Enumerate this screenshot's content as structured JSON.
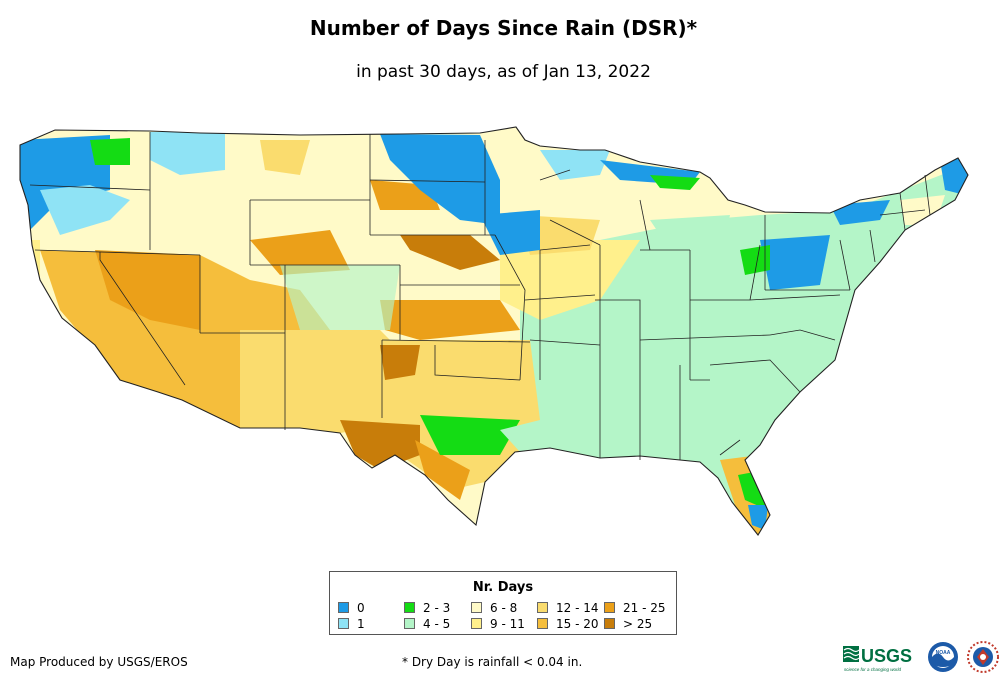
{
  "title": "Number of Days Since Rain (DSR)*",
  "subtitle": "in past 30 days, as of Jan 13, 2022",
  "legend": {
    "title": "Nr. Days",
    "items": [
      {
        "label": "0",
        "color": "#1e9be6"
      },
      {
        "label": "1",
        "color": "#8fe3f5"
      },
      {
        "label": "2 - 3",
        "color": "#14dc14"
      },
      {
        "label": "4 - 5",
        "color": "#b4f5c8"
      },
      {
        "label": "6 - 8",
        "color": "#fffac8"
      },
      {
        "label": "9 - 11",
        "color": "#fff08c"
      },
      {
        "label": "12 - 14",
        "color": "#fadc6e"
      },
      {
        "label": "15 - 20",
        "color": "#f5be3c"
      },
      {
        "label": "21 - 25",
        "color": "#eba019"
      },
      {
        "label": "> 25",
        "color": "#c87d0a"
      }
    ]
  },
  "footer": {
    "credit": "Map Produced by USGS/EROS",
    "note": "* Dry Day is rainfall < 0.04 in."
  },
  "logos": {
    "usgs_text": "USGS",
    "usgs_tagline": "science for a changing world",
    "noaa_text": "NOAA"
  }
}
